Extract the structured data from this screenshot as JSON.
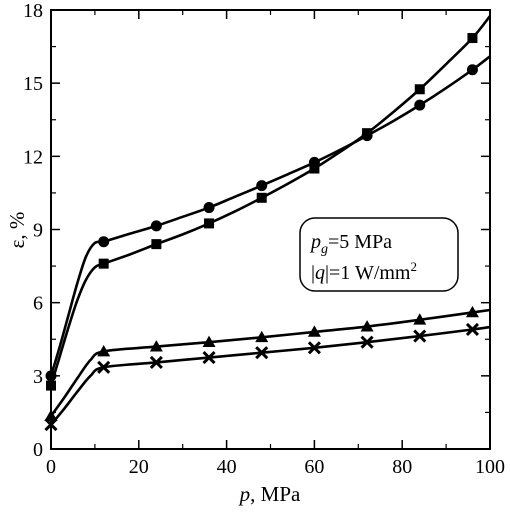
{
  "chart_data": {
    "type": "line",
    "title": "",
    "xlabel": {
      "var": "p",
      "unit": ", MPa"
    },
    "ylabel": "ε, %",
    "xlim": [
      0,
      100
    ],
    "ylim": [
      0,
      18
    ],
    "xticks": [
      0,
      20,
      40,
      60,
      80,
      100
    ],
    "yticks": [
      0,
      3,
      6,
      9,
      12,
      15,
      18
    ],
    "grid": false,
    "legend": null,
    "annotation": {
      "line1": {
        "var": "p",
        "sub": "g",
        "text": "=5 MPa"
      },
      "line2": {
        "pre": "|",
        "var": "q",
        "text": "|=1 W/mm",
        "sup": "2"
      }
    },
    "series": [
      {
        "marker": "circle",
        "x": [
          0,
          12,
          24,
          36,
          48,
          60,
          72,
          84,
          96
        ],
        "y": [
          3.0,
          8.5,
          9.15,
          9.9,
          10.8,
          11.75,
          12.85,
          14.1,
          15.55
        ],
        "curve_x": [
          0,
          2,
          4,
          6,
          8,
          10,
          12,
          18,
          24,
          30,
          36,
          42,
          48,
          54,
          60,
          66,
          72,
          78,
          84,
          90,
          96,
          100
        ],
        "curve_y": [
          3.0,
          4.2,
          5.5,
          6.8,
          7.9,
          8.45,
          8.5,
          8.83,
          9.15,
          9.52,
          9.9,
          10.35,
          10.8,
          11.27,
          11.75,
          12.28,
          12.85,
          13.45,
          14.1,
          14.8,
          15.55,
          16.1
        ]
      },
      {
        "marker": "square",
        "x": [
          0,
          12,
          24,
          36,
          48,
          60,
          72,
          84,
          96
        ],
        "y": [
          2.6,
          7.6,
          8.4,
          9.25,
          10.3,
          11.5,
          12.95,
          14.75,
          16.85
        ],
        "curve_x": [
          0,
          2,
          4,
          6,
          8,
          10,
          12,
          18,
          24,
          30,
          36,
          42,
          48,
          54,
          60,
          66,
          72,
          78,
          84,
          90,
          96,
          100
        ],
        "curve_y": [
          2.6,
          3.8,
          5.0,
          6.1,
          6.95,
          7.45,
          7.6,
          7.98,
          8.4,
          8.8,
          9.25,
          9.75,
          10.3,
          10.88,
          11.5,
          12.2,
          12.95,
          13.82,
          14.75,
          15.78,
          16.85,
          17.75
        ]
      },
      {
        "marker": "triangle",
        "x": [
          0,
          12,
          24,
          36,
          48,
          60,
          72,
          84,
          96
        ],
        "y": [
          1.35,
          4.0,
          4.2,
          4.38,
          4.58,
          4.8,
          5.02,
          5.3,
          5.6
        ],
        "curve_x": [
          0,
          3,
          6,
          9,
          12,
          24,
          36,
          48,
          60,
          72,
          84,
          96,
          100
        ],
        "curve_y": [
          1.35,
          2.1,
          2.9,
          3.65,
          4.0,
          4.2,
          4.38,
          4.58,
          4.8,
          5.02,
          5.3,
          5.6,
          5.7
        ]
      },
      {
        "marker": "cross",
        "x": [
          0,
          12,
          24,
          36,
          48,
          60,
          72,
          84,
          96
        ],
        "y": [
          1.0,
          3.35,
          3.55,
          3.75,
          3.95,
          4.15,
          4.38,
          4.63,
          4.9
        ],
        "curve_x": [
          0,
          3,
          6,
          9,
          12,
          24,
          36,
          48,
          60,
          72,
          84,
          96,
          100
        ],
        "curve_y": [
          1.0,
          1.65,
          2.35,
          3.0,
          3.35,
          3.55,
          3.75,
          3.95,
          4.15,
          4.38,
          4.63,
          4.9,
          5.0
        ]
      }
    ]
  }
}
